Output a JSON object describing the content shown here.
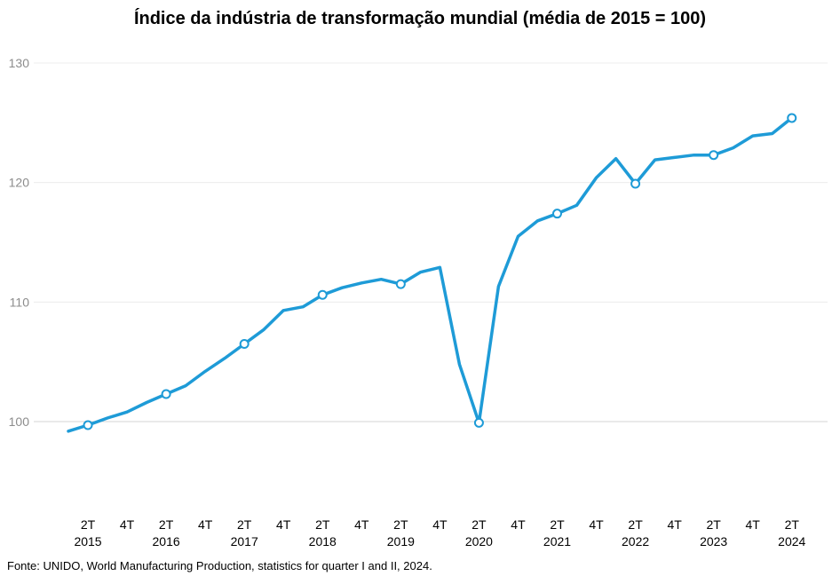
{
  "title": "Índice da indústria de transformação mundial (média de 2015 = 100)",
  "source": "Fonte: UNIDO, World Manufacturing Production, statistics for quarter I and II, 2024.",
  "colors": {
    "line": "#1e9bd7",
    "grid": "#ececec",
    "baseline": "#d4d4d4"
  },
  "chart_data": {
    "type": "line",
    "title": "Índice da indústria de transformação mundial (média de 2015 = 100)",
    "xlabel": "",
    "ylabel": "",
    "ylim": [
      100,
      130
    ],
    "yticks": [
      100,
      110,
      120,
      130
    ],
    "grid": true,
    "legend": "none",
    "x": [
      "1T 2015",
      "2T 2015",
      "3T 2015",
      "4T 2015",
      "1T 2016",
      "2T 2016",
      "3T 2016",
      "4T 2016",
      "1T 2017",
      "2T 2017",
      "3T 2017",
      "4T 2017",
      "1T 2018",
      "2T 2018",
      "3T 2018",
      "4T 2018",
      "1T 2019",
      "2T 2019",
      "3T 2019",
      "4T 2019",
      "1T 2020",
      "2T 2020",
      "3T 2020",
      "4T 2020",
      "1T 2021",
      "2T 2021",
      "3T 2021",
      "4T 2021",
      "1T 2022",
      "2T 2022",
      "3T 2022",
      "4T 2022",
      "1T 2023",
      "2T 2023",
      "3T 2023",
      "4T 2023",
      "1T 2024",
      "2T 2024"
    ],
    "series": [
      {
        "values": [
          99.2,
          99.7,
          100.3,
          100.8,
          101.6,
          102.3,
          103.0,
          104.2,
          105.3,
          106.5,
          107.7,
          109.3,
          109.6,
          110.6,
          111.2,
          111.6,
          111.9,
          111.5,
          112.5,
          112.9,
          104.8,
          99.9,
          111.3,
          115.5,
          116.8,
          117.4,
          118.1,
          120.4,
          122.0,
          119.9,
          121.9,
          122.1,
          122.3,
          122.3,
          122.9,
          123.9,
          124.1,
          125.4
        ],
        "marker_points": [
          "2T 2015",
          "2T 2016",
          "2T 2017",
          "2T 2018",
          "2T 2019",
          "2T 2020",
          "2T 2021",
          "2T 2022",
          "2T 2023",
          "2T 2024"
        ]
      }
    ],
    "x_tick_labels": [
      {
        "quarter": "2T",
        "year": "2015",
        "at": "2T 2015"
      },
      {
        "quarter": "4T",
        "year": "",
        "at": "4T 2015"
      },
      {
        "quarter": "2T",
        "year": "2016",
        "at": "2T 2016"
      },
      {
        "quarter": "4T",
        "year": "",
        "at": "4T 2016"
      },
      {
        "quarter": "2T",
        "year": "2017",
        "at": "2T 2017"
      },
      {
        "quarter": "4T",
        "year": "",
        "at": "4T 2017"
      },
      {
        "quarter": "2T",
        "year": "2018",
        "at": "2T 2018"
      },
      {
        "quarter": "4T",
        "year": "",
        "at": "4T 2018"
      },
      {
        "quarter": "2T",
        "year": "2019",
        "at": "2T 2019"
      },
      {
        "quarter": "4T",
        "year": "",
        "at": "4T 2019"
      },
      {
        "quarter": "2T",
        "year": "2020",
        "at": "2T 2020"
      },
      {
        "quarter": "4T",
        "year": "",
        "at": "4T 2020"
      },
      {
        "quarter": "2T",
        "year": "2021",
        "at": "2T 2021"
      },
      {
        "quarter": "4T",
        "year": "",
        "at": "4T 2021"
      },
      {
        "quarter": "2T",
        "year": "2022",
        "at": "2T 2022"
      },
      {
        "quarter": "4T",
        "year": "",
        "at": "4T 2022"
      },
      {
        "quarter": "2T",
        "year": "2023",
        "at": "2T 2023"
      },
      {
        "quarter": "4T",
        "year": "",
        "at": "4T 2023"
      },
      {
        "quarter": "2T",
        "year": "2024",
        "at": "2T 2024"
      }
    ]
  }
}
